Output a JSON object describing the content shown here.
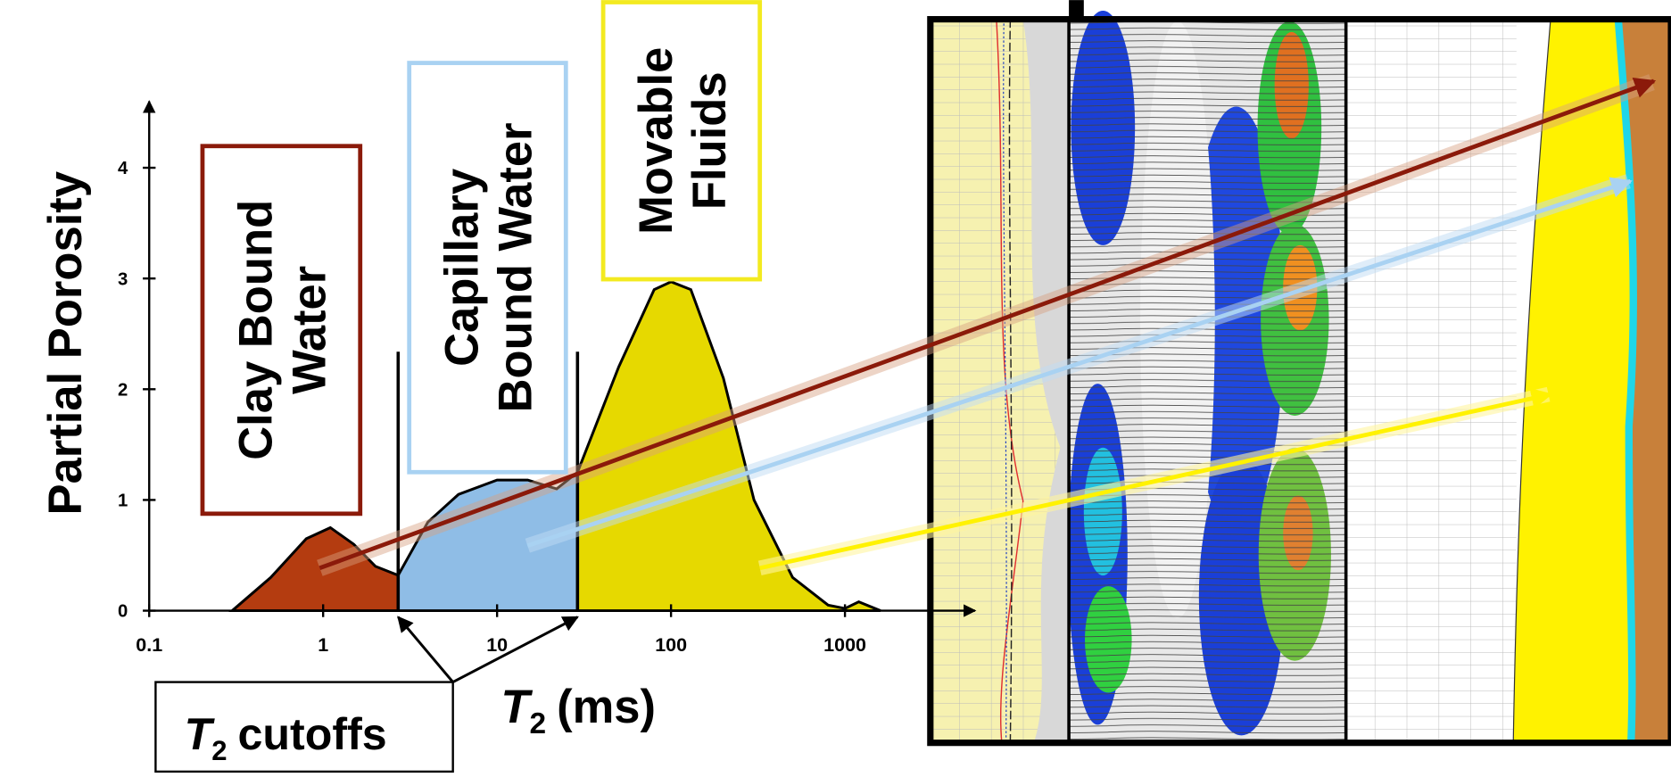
{
  "chart_data": {
    "type": "area",
    "y_label": "Partial Porosity",
    "x_label": {
      "symbol": "T",
      "subscript": "2",
      "unit": "(ms)"
    },
    "x": [
      0.3,
      0.5,
      0.8,
      1.1,
      1.5,
      2.0,
      2.7,
      4,
      6,
      10,
      15,
      22,
      29,
      50,
      80,
      100,
      130,
      200,
      300,
      500,
      800,
      1000,
      1200,
      1600
    ],
    "values": [
      0,
      0.3,
      0.65,
      0.75,
      0.6,
      0.4,
      0.32,
      0.8,
      1.05,
      1.18,
      1.18,
      1.1,
      1.25,
      2.2,
      2.9,
      2.97,
      2.9,
      2.1,
      1.0,
      0.3,
      0.05,
      0.02,
      0.08,
      0
    ],
    "log_x": true,
    "xlim": [
      0.1,
      5600
    ],
    "xticks": [
      0.1,
      1,
      10,
      100,
      1000
    ],
    "ylim": [
      0,
      4.6
    ],
    "yticks": [
      0,
      1,
      2,
      3,
      4
    ],
    "cutoffs": [
      2.7,
      29
    ],
    "cutoff_label": {
      "symbol": "T",
      "subscript": "2",
      "text": "cutoffs"
    },
    "regions": [
      {
        "lines": [
          "Clay Bound",
          "Water"
        ],
        "color": "#b43c10",
        "border": "#8b1a0a"
      },
      {
        "lines": [
          "Capillary",
          "Bound Water"
        ],
        "color": "#8fbde6",
        "border": "#a9d2f2"
      },
      {
        "lines": [
          "Movable",
          "Fluids"
        ],
        "color": "#e6d900",
        "border": "#f3ea20"
      }
    ]
  }
}
